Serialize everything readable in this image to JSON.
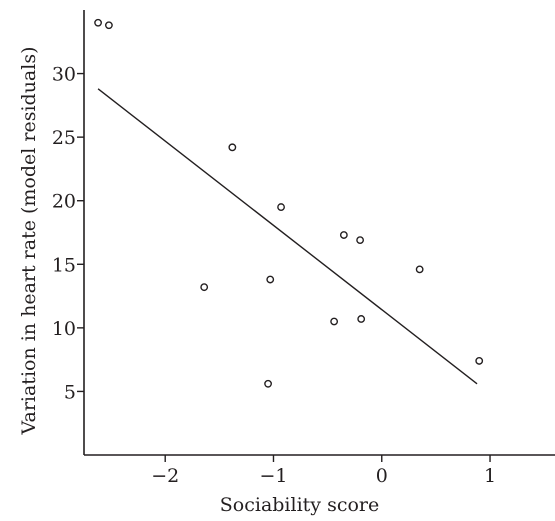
{
  "chart_data": {
    "type": "scatter",
    "xlabel": "Sociability score",
    "ylabel": "Variation in heart rate (model residuals)",
    "xlim": [
      -2.75,
      1.6
    ],
    "ylim": [
      0,
      35
    ],
    "xticks": [
      -2,
      -1,
      0,
      1
    ],
    "xtick_labels": [
      "−2",
      "−1",
      "0",
      "1"
    ],
    "yticks": [
      5,
      10,
      15,
      20,
      25,
      30
    ],
    "ytick_labels": [
      "5",
      "10",
      "15",
      "20",
      "25",
      "30"
    ],
    "grid": false,
    "points": [
      {
        "x": -2.62,
        "y": 34.0
      },
      {
        "x": -2.52,
        "y": 33.8
      },
      {
        "x": -1.38,
        "y": 24.2
      },
      {
        "x": -0.93,
        "y": 19.5
      },
      {
        "x": -0.35,
        "y": 17.3
      },
      {
        "x": -0.2,
        "y": 16.9
      },
      {
        "x": 0.35,
        "y": 14.6
      },
      {
        "x": -1.64,
        "y": 13.2
      },
      {
        "x": -1.03,
        "y": 13.8
      },
      {
        "x": -0.44,
        "y": 10.5
      },
      {
        "x": -0.19,
        "y": 10.7
      },
      {
        "x": 0.9,
        "y": 7.4
      },
      {
        "x": -1.05,
        "y": 5.6
      }
    ],
    "fit_line": {
      "x": [
        -2.62,
        0.88
      ],
      "y": [
        28.8,
        5.6
      ]
    }
  }
}
